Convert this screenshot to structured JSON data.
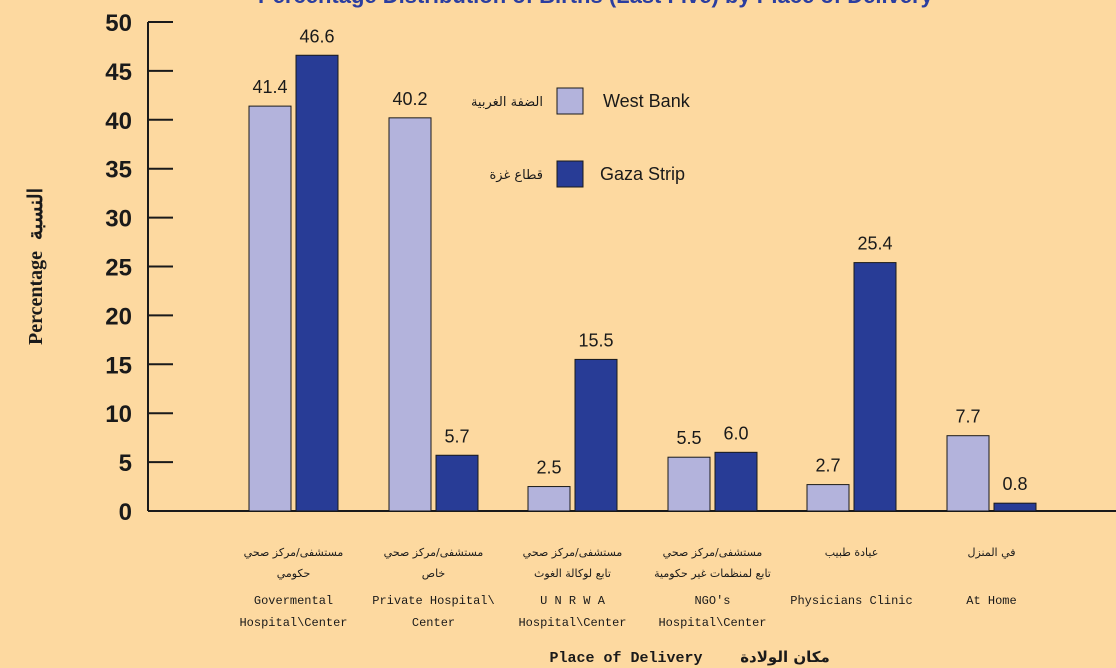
{
  "chart_data": {
    "type": "bar",
    "title": "Percentage Distribution of Births (Last Five) by Place of Delivery",
    "ylabel": "Percentage",
    "ylabel_ar": "النسبة",
    "xlabel": "Place of Delivery",
    "xlabel_ar": "مكان الولادة",
    "ylim": [
      0,
      50
    ],
    "yticks": [
      "0",
      "5",
      "10",
      "15",
      "20",
      "25",
      "30",
      "35",
      "40",
      "45",
      "50"
    ],
    "grid": false,
    "legend_placement": "top-center",
    "categories": [
      {
        "ar": [
          "مستشفى/مركز صحي",
          "حكومي"
        ],
        "en": [
          "Govermental",
          "Hospital\\Center"
        ]
      },
      {
        "ar": [
          "مستشفى/مركز صحي",
          "خاص"
        ],
        "en": [
          "Private Hospital\\",
          "Center"
        ]
      },
      {
        "ar": [
          "مستشفى/مركز صحي",
          "تابع لوكالة الغوث"
        ],
        "en": [
          "U N R W A",
          "Hospital\\Center"
        ]
      },
      {
        "ar": [
          "مستشفى/مركز صحي",
          "تابع لمنظمات غير حكومية"
        ],
        "en": [
          "NGO's",
          "Hospital\\Center"
        ]
      },
      {
        "ar": [
          "عيادة طبيب"
        ],
        "en": [
          "Physicians Clinic"
        ]
      },
      {
        "ar": [
          "في المنزل"
        ],
        "en": [
          "At Home"
        ]
      }
    ],
    "series": [
      {
        "name": "West Bank",
        "name_ar": "الضفة الغربية",
        "color": "#b3b3dc",
        "values": [
          41.4,
          40.2,
          2.5,
          5.5,
          2.7,
          7.7
        ],
        "labels": [
          "41.4",
          "40.2",
          "2.5",
          "5.5",
          "2.7",
          "7.7"
        ]
      },
      {
        "name": "Gaza Strip",
        "name_ar": "قطاع غزة",
        "color": "#283c96",
        "values": [
          46.6,
          5.7,
          15.5,
          6.0,
          25.4,
          0.8
        ],
        "labels": [
          "46.6",
          "5.7",
          "15.5",
          "6.0",
          "25.4",
          "0.8"
        ]
      }
    ]
  }
}
